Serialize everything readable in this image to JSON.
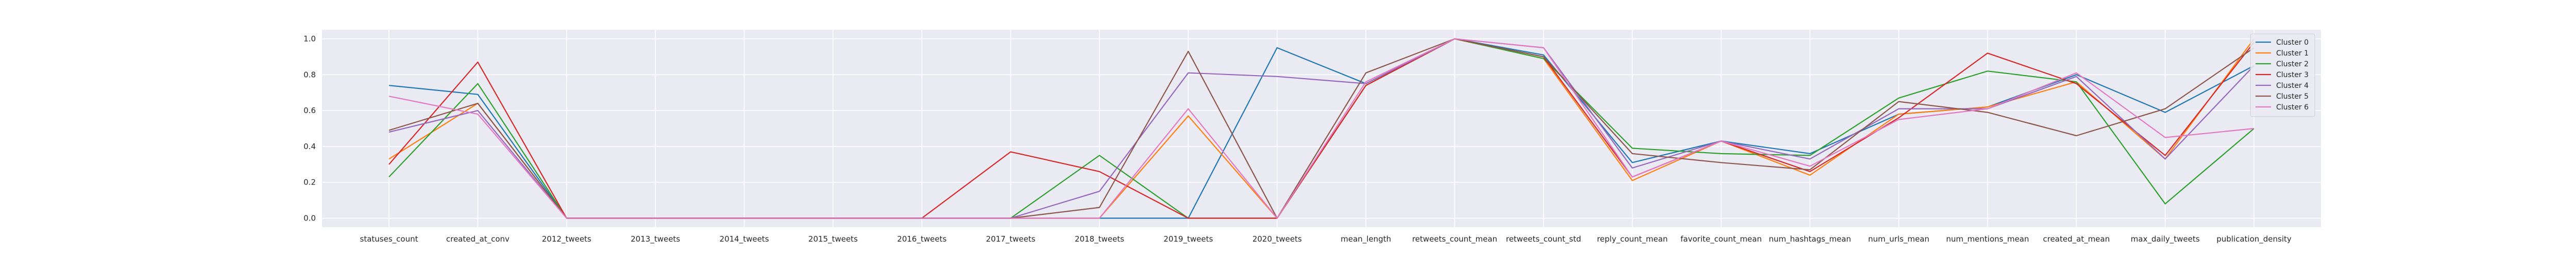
{
  "chart_data": {
    "type": "line",
    "categories": [
      "statuses_count",
      "created_at_conv",
      "2012_tweets",
      "2013_tweets",
      "2014_tweets",
      "2015_tweets",
      "2016_tweets",
      "2017_tweets",
      "2018_tweets",
      "2019_tweets",
      "2020_tweets",
      "mean_length",
      "retweets_count_mean",
      "retweets_count_std",
      "reply_count_mean",
      "favorite_count_mean",
      "num_hashtags_mean",
      "num_urls_mean",
      "num_mentions_mean",
      "created_at_mean",
      "max_daily_tweets",
      "publication_density"
    ],
    "ylim": [
      -0.05,
      1.05
    ],
    "yticks": [
      0.0,
      0.2,
      0.4,
      0.6,
      0.8,
      1.0
    ],
    "ytick_labels": [
      "0.0",
      "0.2",
      "0.4",
      "0.6",
      "0.8",
      "1.0"
    ],
    "grid": true,
    "legend_position": "top-right",
    "background": "#eaeaf2",
    "series": [
      {
        "name": "Cluster 0",
        "color": "#1f77b4",
        "values": [
          0.74,
          0.69,
          0.0,
          0.0,
          0.0,
          0.0,
          0.0,
          0.0,
          0.0,
          0.0,
          0.95,
          0.75,
          1.0,
          0.91,
          0.31,
          0.43,
          0.36,
          0.58,
          0.62,
          0.8,
          0.59,
          0.85
        ]
      },
      {
        "name": "Cluster 1",
        "color": "#ff7f0e",
        "values": [
          0.33,
          0.64,
          0.0,
          0.0,
          0.0,
          0.0,
          0.0,
          0.0,
          0.0,
          0.57,
          0.0,
          0.74,
          1.0,
          0.89,
          0.21,
          0.43,
          0.24,
          0.58,
          0.62,
          0.76,
          0.33,
          1.0
        ]
      },
      {
        "name": "Cluster 2",
        "color": "#2ca02c",
        "values": [
          0.23,
          0.75,
          0.0,
          0.0,
          0.0,
          0.0,
          0.0,
          0.0,
          0.35,
          0.0,
          0.0,
          0.74,
          1.0,
          0.89,
          0.39,
          0.36,
          0.35,
          0.67,
          0.82,
          0.76,
          0.08,
          0.5
        ]
      },
      {
        "name": "Cluster 3",
        "color": "#d62728",
        "values": [
          0.3,
          0.87,
          0.0,
          0.0,
          0.0,
          0.0,
          0.0,
          0.37,
          0.26,
          0.0,
          0.0,
          0.74,
          1.0,
          0.9,
          0.23,
          0.43,
          0.26,
          0.56,
          0.92,
          0.75,
          0.35,
          0.98
        ]
      },
      {
        "name": "Cluster 4",
        "color": "#9467bd",
        "values": [
          0.48,
          0.6,
          0.0,
          0.0,
          0.0,
          0.0,
          0.0,
          0.0,
          0.15,
          0.81,
          0.79,
          0.75,
          1.0,
          0.95,
          0.28,
          0.43,
          0.33,
          0.61,
          0.61,
          0.79,
          0.33,
          0.85
        ]
      },
      {
        "name": "Cluster 5",
        "color": "#8c564b",
        "values": [
          0.49,
          0.64,
          0.0,
          0.0,
          0.0,
          0.0,
          0.0,
          0.0,
          0.06,
          0.93,
          0.0,
          0.81,
          1.0,
          0.9,
          0.36,
          0.31,
          0.27,
          0.65,
          0.59,
          0.46,
          0.61,
          0.95
        ]
      },
      {
        "name": "Cluster 6",
        "color": "#e377c2",
        "values": [
          0.68,
          0.58,
          0.0,
          0.0,
          0.0,
          0.0,
          0.0,
          0.0,
          0.0,
          0.61,
          0.0,
          0.76,
          1.0,
          0.95,
          0.23,
          0.43,
          0.29,
          0.55,
          0.61,
          0.81,
          0.45,
          0.5
        ]
      }
    ]
  }
}
